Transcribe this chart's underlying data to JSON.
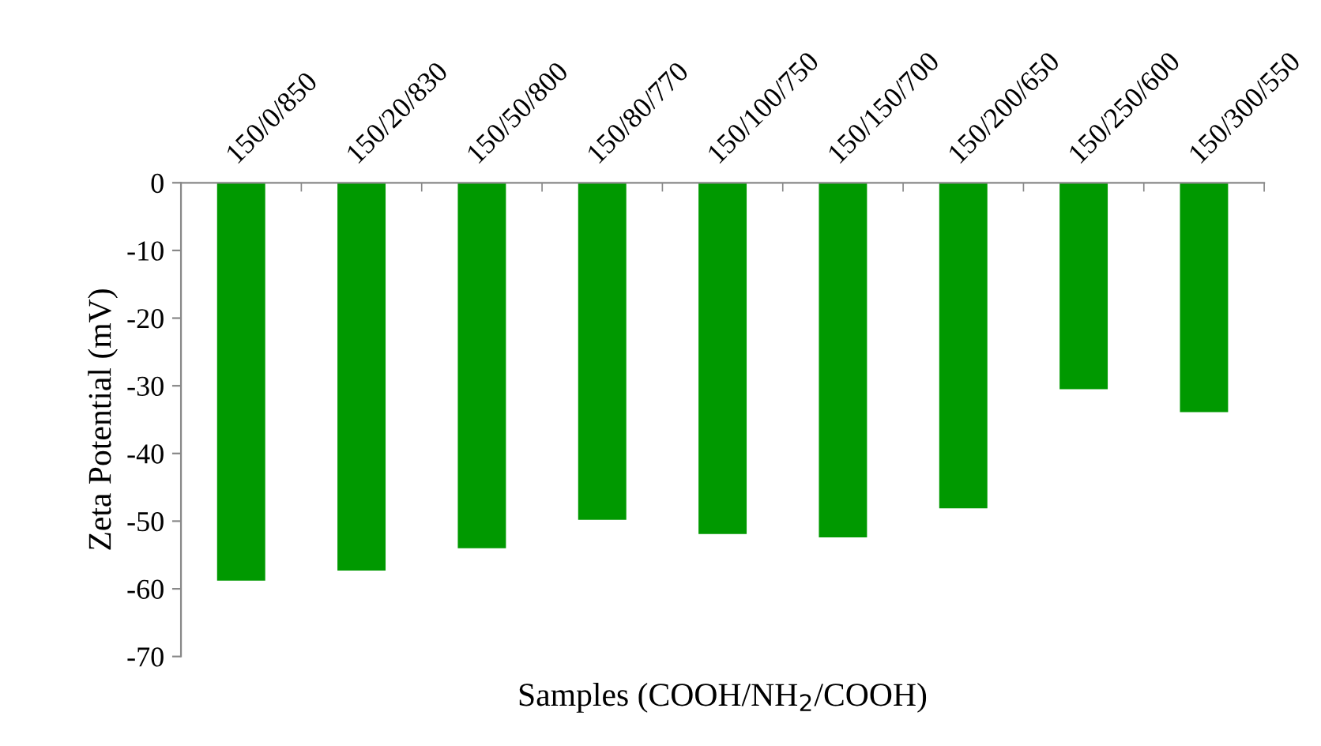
{
  "chart_data": {
    "type": "bar",
    "categories": [
      "150/0/850",
      "150/20/830",
      "150/50/800",
      "150/80/770",
      "150/100/750",
      "150/150/700",
      "150/200/650",
      "150/250/600",
      "150/300/550"
    ],
    "values": [
      -58.8,
      -57.3,
      -54.0,
      -49.8,
      -51.9,
      -52.4,
      -48.1,
      -30.5,
      -33.9
    ],
    "color": "#009900",
    "xlabel": "Samples (COOH/NH$_{2}$/COOH)",
    "ylabel": "Zeta Potential (mV)",
    "ylim": [
      -70,
      0
    ],
    "yticks": [
      -70,
      -60,
      -50,
      -40,
      -30,
      -20,
      -10,
      0
    ],
    "grid": false
  }
}
